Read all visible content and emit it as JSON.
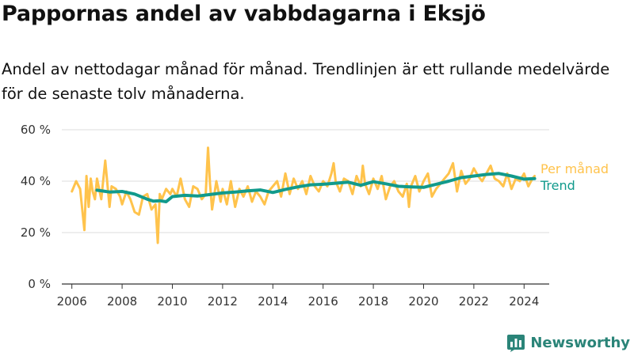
{
  "title": "Pappornas andel av vabbdagarna i Eksjö",
  "subtitle": "Andel av nettodagar månad för månad. Trendlinjen är ett rullande medelvärde för de senaste tolv månaderna.",
  "brand": {
    "name": "Newsworthy",
    "icon": "bar-chart-logo-icon"
  },
  "colors": {
    "monthly": "#ffc34c",
    "trend": "#119a8c",
    "grid": "#dddddd",
    "axis": "#333333",
    "brand": "#2a8478"
  },
  "chart_data": {
    "type": "line",
    "title": "Pappornas andel av vabbdagarna i Eksjö",
    "xlabel": "",
    "ylabel": "",
    "xlim": [
      2005.6,
      2025.0
    ],
    "ylim": [
      0,
      60
    ],
    "grid": true,
    "legend": "right",
    "x_ticks": [
      2006,
      2008,
      2010,
      2012,
      2014,
      2016,
      2018,
      2020,
      2022,
      2024
    ],
    "x_tick_labels": [
      "2006",
      "2008",
      "2010",
      "2012",
      "2014",
      "2016",
      "2018",
      "2020",
      "2022",
      "2024"
    ],
    "y_ticks": [
      0,
      20,
      40,
      60
    ],
    "y_tick_labels": [
      "0 %",
      "20 %",
      "40 %",
      "60 %"
    ],
    "series": [
      {
        "name": "Per månad",
        "x": [
          2006.0,
          2006.17,
          2006.33,
          2006.5,
          2006.58,
          2006.67,
          2006.75,
          2006.83,
          2006.92,
          2007.0,
          2007.17,
          2007.33,
          2007.5,
          2007.58,
          2007.75,
          2007.92,
          2008.0,
          2008.17,
          2008.33,
          2008.5,
          2008.67,
          2008.83,
          2009.0,
          2009.17,
          2009.33,
          2009.42,
          2009.5,
          2009.58,
          2009.75,
          2009.92,
          2010.0,
          2010.17,
          2010.33,
          2010.5,
          2010.67,
          2010.83,
          2011.0,
          2011.17,
          2011.33,
          2011.42,
          2011.5,
          2011.58,
          2011.75,
          2011.92,
          2012.0,
          2012.17,
          2012.33,
          2012.5,
          2012.67,
          2012.83,
          2013.0,
          2013.17,
          2013.33,
          2013.5,
          2013.67,
          2013.83,
          2014.0,
          2014.17,
          2014.33,
          2014.5,
          2014.67,
          2014.83,
          2015.0,
          2015.17,
          2015.33,
          2015.5,
          2015.67,
          2015.83,
          2016.0,
          2016.17,
          2016.33,
          2016.42,
          2016.5,
          2016.67,
          2016.83,
          2017.0,
          2017.17,
          2017.33,
          2017.5,
          2017.58,
          2017.67,
          2017.83,
          2018.0,
          2018.17,
          2018.33,
          2018.5,
          2018.67,
          2018.83,
          2019.0,
          2019.17,
          2019.33,
          2019.42,
          2019.5,
          2019.67,
          2019.83,
          2020.0,
          2020.17,
          2020.33,
          2020.5,
          2020.67,
          2020.83,
          2021.0,
          2021.17,
          2021.33,
          2021.5,
          2021.67,
          2021.83,
          2022.0,
          2022.17,
          2022.33,
          2022.5,
          2022.67,
          2022.83,
          2023.0,
          2023.17,
          2023.33,
          2023.5,
          2023.67,
          2023.83,
          2024.0,
          2024.17,
          2024.33,
          2024.42
        ],
        "values": [
          36,
          40,
          37,
          21,
          42,
          30,
          41,
          36,
          33,
          41,
          33,
          48,
          30,
          38,
          37,
          34,
          31,
          36,
          33,
          28,
          27,
          34,
          35,
          29,
          31,
          16,
          35,
          33,
          37,
          35,
          37,
          34,
          41,
          33,
          30,
          38,
          37,
          33,
          35,
          53,
          39,
          29,
          40,
          32,
          37,
          31,
          40,
          30,
          37,
          34,
          38,
          32,
          36,
          34,
          31,
          36,
          38,
          40,
          34,
          43,
          35,
          41,
          37,
          40,
          35,
          42,
          38,
          36,
          40,
          38,
          43,
          47,
          40,
          36,
          41,
          40,
          35,
          42,
          38,
          46,
          39,
          35,
          41,
          37,
          42,
          33,
          38,
          40,
          36,
          34,
          39,
          30,
          38,
          42,
          36,
          40,
          43,
          34,
          37,
          39,
          41,
          43,
          47,
          36,
          44,
          39,
          41,
          45,
          42,
          40,
          43,
          46,
          41,
          40,
          38,
          43,
          37,
          41,
          40,
          43,
          38,
          41,
          42
        ]
      },
      {
        "name": "Trend",
        "x": [
          2007.0,
          2007.5,
          2008.0,
          2008.5,
          2009.0,
          2009.25,
          2009.5,
          2009.75,
          2010.0,
          2010.5,
          2011.0,
          2011.5,
          2012.0,
          2012.5,
          2013.0,
          2013.5,
          2014.0,
          2014.5,
          2015.0,
          2015.5,
          2016.0,
          2016.5,
          2017.0,
          2017.5,
          2018.0,
          2018.5,
          2019.0,
          2019.5,
          2020.0,
          2020.5,
          2021.0,
          2021.5,
          2022.0,
          2022.5,
          2023.0,
          2023.5,
          2024.0,
          2024.42
        ],
        "values": [
          36.5,
          35.8,
          36.0,
          35.0,
          33.0,
          32.2,
          32.4,
          32.0,
          34.0,
          34.5,
          34.2,
          34.8,
          35.4,
          35.8,
          36.2,
          36.6,
          35.6,
          36.8,
          37.8,
          38.6,
          38.8,
          39.2,
          39.6,
          38.4,
          39.8,
          39.0,
          38.0,
          37.8,
          37.6,
          38.8,
          40.0,
          41.4,
          42.0,
          42.6,
          43.0,
          42.0,
          40.8,
          41.0
        ]
      }
    ]
  }
}
